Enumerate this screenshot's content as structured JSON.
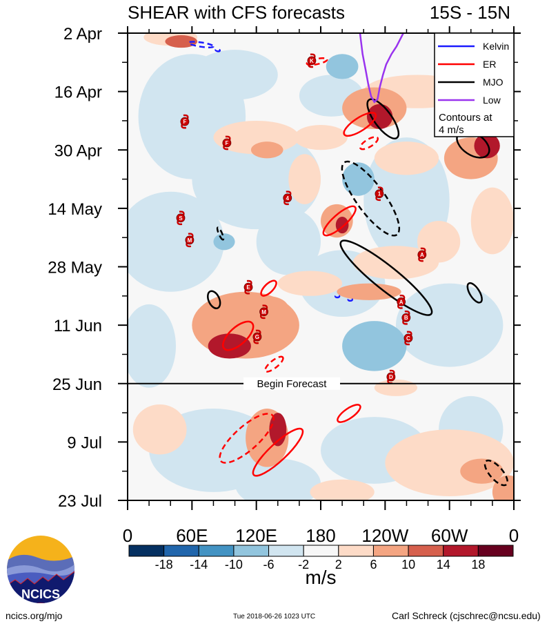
{
  "chart_data": {
    "type": "heatmap",
    "title": "SHEAR with CFS forecasts",
    "region": "15S - 15N",
    "x_axis": {
      "range_lon": [
        0,
        360
      ],
      "ticks": [
        {
          "lon": 0,
          "label": "0"
        },
        {
          "lon": 60,
          "label": "60E"
        },
        {
          "lon": 120,
          "label": "120E"
        },
        {
          "lon": 180,
          "label": "180"
        },
        {
          "lon": 240,
          "label": "120W"
        },
        {
          "lon": 300,
          "label": "60W"
        },
        {
          "lon": 360,
          "label": "0"
        }
      ]
    },
    "y_axis": {
      "range_days_from_2Apr": [
        0,
        112
      ],
      "ticks": [
        {
          "day": 0,
          "label": "2 Apr"
        },
        {
          "day": 14,
          "label": "16 Apr"
        },
        {
          "day": 28,
          "label": "30 Apr"
        },
        {
          "day": 42,
          "label": "14 May"
        },
        {
          "day": 56,
          "label": "28 May"
        },
        {
          "day": 70,
          "label": "11 Jun"
        },
        {
          "day": 84,
          "label": "25 Jun"
        },
        {
          "day": 98,
          "label": "9 Jul"
        },
        {
          "day": 112,
          "label": "23 Jul"
        }
      ]
    },
    "forecast_start": {
      "day": 84,
      "label": "Begin Forecast"
    },
    "colorbar": {
      "unit": "m/s",
      "levels": [
        "-18",
        "-14",
        "-10",
        "-6",
        "-2",
        "2",
        "6",
        "10",
        "14",
        "18"
      ],
      "colors": [
        "#053061",
        "#2166ac",
        "#4393c3",
        "#92c5de",
        "#d1e5f0",
        "#f7f7f7",
        "#fddbc7",
        "#f4a582",
        "#d6604d",
        "#b2182b",
        "#67001f"
      ]
    },
    "legend": {
      "items": [
        {
          "label": "Kelvin",
          "color": "#1a1aff"
        },
        {
          "label": "ER",
          "color": "#ff0000"
        },
        {
          "label": "MJO",
          "color": "#000000"
        },
        {
          "label": "Low",
          "color": "#9933ee"
        }
      ],
      "note_line1": "Contours at",
      "note_line2": "4 m/s",
      "placement": "top-right"
    },
    "shading_anomalies": [
      {
        "lon": 60,
        "day": 20,
        "rlon": 50,
        "rday": 15,
        "v": -4
      },
      {
        "lon": 120,
        "day": 35,
        "rlon": 60,
        "rday": 12,
        "v": -4
      },
      {
        "lon": 40,
        "day": 50,
        "rlon": 50,
        "rday": 12,
        "v": -4
      },
      {
        "lon": 150,
        "day": 50,
        "rlon": 30,
        "rday": 8,
        "v": -4
      },
      {
        "lon": 80,
        "day": 100,
        "rlon": 60,
        "rday": 10,
        "v": -4
      },
      {
        "lon": 140,
        "day": 108,
        "rlon": 40,
        "rday": 6,
        "v": -4
      },
      {
        "lon": 260,
        "day": 40,
        "rlon": 40,
        "rday": 15,
        "v": -4
      },
      {
        "lon": 300,
        "day": 70,
        "rlon": 50,
        "rday": 10,
        "v": -4
      },
      {
        "lon": 230,
        "day": 100,
        "rlon": 50,
        "rday": 8,
        "v": -4
      },
      {
        "lon": 320,
        "day": 95,
        "rlon": 30,
        "rday": 8,
        "v": -4
      },
      {
        "lon": 200,
        "day": 60,
        "rlon": 40,
        "rday": 8,
        "v": -4
      },
      {
        "lon": 20,
        "day": 75,
        "rlon": 25,
        "rday": 10,
        "v": -4
      },
      {
        "lon": 100,
        "day": 10,
        "rlon": 40,
        "rday": 6,
        "v": -4
      },
      {
        "lon": 190,
        "day": 15,
        "rlon": 30,
        "rday": 5,
        "v": -4
      },
      {
        "lon": 230,
        "day": 75,
        "rlon": 30,
        "rday": 6,
        "v": -8
      },
      {
        "lon": 215,
        "day": 35,
        "rlon": 15,
        "rday": 4,
        "v": -8
      },
      {
        "lon": 200,
        "day": 8,
        "rlon": 15,
        "rday": 3,
        "v": -8
      },
      {
        "lon": 90,
        "day": 50,
        "rlon": 10,
        "rday": 2,
        "v": -8
      },
      {
        "lon": 40,
        "day": 1,
        "rlon": 25,
        "rday": 2,
        "v": 4
      },
      {
        "lon": 50,
        "day": 2,
        "rlon": 15,
        "rday": 1.5,
        "v": 12
      },
      {
        "lon": 120,
        "day": 25,
        "rlon": 40,
        "rday": 4,
        "v": 4
      },
      {
        "lon": 130,
        "day": 28,
        "rlon": 15,
        "rday": 2,
        "v": 8
      },
      {
        "lon": 165,
        "day": 35,
        "rlon": 15,
        "rday": 6,
        "v": 4
      },
      {
        "lon": 230,
        "day": 18,
        "rlon": 30,
        "rday": 5,
        "v": 8
      },
      {
        "lon": 235,
        "day": 20,
        "rlon": 12,
        "rday": 3,
        "v": 14
      },
      {
        "lon": 270,
        "day": 14,
        "rlon": 50,
        "rday": 4,
        "v": 4
      },
      {
        "lon": 320,
        "day": 30,
        "rlon": 25,
        "rday": 5,
        "v": 8
      },
      {
        "lon": 335,
        "day": 27,
        "rlon": 12,
        "rday": 3,
        "v": 14
      },
      {
        "lon": 110,
        "day": 70,
        "rlon": 50,
        "rday": 8,
        "v": 8
      },
      {
        "lon": 95,
        "day": 75,
        "rlon": 20,
        "rday": 3,
        "v": 14
      },
      {
        "lon": 130,
        "day": 66,
        "rlon": 20,
        "rday": 3,
        "v": 8
      },
      {
        "lon": 195,
        "day": 45,
        "rlon": 15,
        "rday": 4,
        "v": 8
      },
      {
        "lon": 200,
        "day": 46,
        "rlon": 6,
        "rday": 2,
        "v": 14
      },
      {
        "lon": 250,
        "day": 55,
        "rlon": 40,
        "rday": 4,
        "v": 4
      },
      {
        "lon": 225,
        "day": 62,
        "rlon": 30,
        "rday": 2,
        "v": 8
      },
      {
        "lon": 170,
        "day": 60,
        "rlon": 30,
        "rday": 3,
        "v": 4
      },
      {
        "lon": 250,
        "day": 85,
        "rlon": 20,
        "rday": 2,
        "v": 4
      },
      {
        "lon": 130,
        "day": 97,
        "rlon": 20,
        "rday": 7,
        "v": 8
      },
      {
        "lon": 140,
        "day": 95,
        "rlon": 8,
        "rday": 4,
        "v": 14
      },
      {
        "lon": 300,
        "day": 103,
        "rlon": 60,
        "rday": 8,
        "v": 4
      },
      {
        "lon": 330,
        "day": 105,
        "rlon": 20,
        "rday": 3,
        "v": 8
      },
      {
        "lon": 355,
        "day": 110,
        "rlon": 15,
        "rday": 4,
        "v": 8
      },
      {
        "lon": 30,
        "day": 95,
        "rlon": 25,
        "rday": 6,
        "v": 4
      },
      {
        "lon": 290,
        "day": 50,
        "rlon": 20,
        "rday": 5,
        "v": 4
      },
      {
        "lon": 200,
        "day": 110,
        "rlon": 30,
        "rday": 3,
        "v": 4
      },
      {
        "lon": 340,
        "day": 45,
        "rlon": 20,
        "rday": 8,
        "v": 4
      },
      {
        "lon": 260,
        "day": 30,
        "rlon": 30,
        "rday": 4,
        "v": 4
      },
      {
        "lon": 180,
        "day": 25,
        "rlon": 25,
        "rday": 3,
        "v": 4
      }
    ],
    "contours": [
      {
        "wave": "Kelvin",
        "sign": "neg",
        "p1": [
          57,
          2.3
        ],
        "p2": [
          80,
          3.2
        ],
        "width": 4
      },
      {
        "wave": "Kelvin",
        "sign": "neg",
        "p1": [
          82,
          4.0
        ],
        "p2": [
          86,
          4.2
        ],
        "width": 2
      },
      {
        "wave": "Kelvin",
        "sign": "neg",
        "p1": [
          195,
          63.1
        ],
        "p2": [
          196,
          63.1
        ],
        "width": 2
      },
      {
        "wave": "Kelvin",
        "sign": "neg",
        "p1": [
          207,
          63.9
        ],
        "p2": [
          208,
          63.9
        ],
        "width": 2
      },
      {
        "wave": "MJO",
        "sign": "pos",
        "p1": [
          225,
          16
        ],
        "p2": [
          251,
          25.1
        ],
        "width": 16
      },
      {
        "wave": "MJO",
        "sign": "pos",
        "p1": [
          308,
          24.3
        ],
        "p2": [
          336,
          29
        ],
        "width": 20
      },
      {
        "wave": "MJO",
        "sign": "neg",
        "p1": [
          202,
          31
        ],
        "p2": [
          251,
          48.3
        ],
        "width": 26
      },
      {
        "wave": "MJO",
        "sign": "pos",
        "p1": [
          199,
          50
        ],
        "p2": [
          283,
          67.3
        ],
        "width": 22
      },
      {
        "wave": "MJO",
        "sign": "pos",
        "p1": [
          77,
          61.9
        ],
        "p2": [
          84,
          65.9
        ],
        "width": 10
      },
      {
        "wave": "MJO",
        "sign": "neg",
        "p1": [
          84,
          46.6
        ],
        "p2": [
          89,
          49.5
        ],
        "width": 3
      },
      {
        "wave": "MJO",
        "sign": "pos",
        "p1": [
          318,
          60
        ],
        "p2": [
          329,
          64.5
        ],
        "width": 9
      },
      {
        "wave": "MJO",
        "sign": "neg",
        "p1": [
          334,
          102.6
        ],
        "p2": [
          353,
          108.2
        ],
        "width": 12
      },
      {
        "wave": "ER",
        "sign": "pos",
        "p1": [
          202,
          24.3
        ],
        "p2": [
          231,
          19.4
        ],
        "width": 12
      },
      {
        "wave": "ER",
        "sign": "neg",
        "p1": [
          217,
          27.6
        ],
        "p2": [
          233,
          25.1
        ],
        "width": 7
      },
      {
        "wave": "ER",
        "sign": "neg",
        "p1": [
          167,
          7.3
        ],
        "p2": [
          186,
          6.3
        ],
        "width": 5
      },
      {
        "wave": "ER",
        "sign": "pos",
        "p1": [
          183,
          48.3
        ],
        "p2": [
          212,
          41.7
        ],
        "width": 12
      },
      {
        "wave": "ER",
        "sign": "pos",
        "p1": [
          125,
          62.8
        ],
        "p2": [
          138,
          59.5
        ],
        "width": 8
      },
      {
        "wave": "ER",
        "sign": "pos",
        "p1": [
          90,
          75.6
        ],
        "p2": [
          116,
          69.5
        ],
        "width": 16
      },
      {
        "wave": "ER",
        "sign": "neg",
        "p1": [
          128.5,
          81
        ],
        "p2": [
          144.6,
          77.7
        ],
        "width": 7
      },
      {
        "wave": "ER",
        "sign": "pos",
        "p1": [
          196,
          93
        ],
        "p2": [
          216.6,
          89.3
        ],
        "width": 9
      },
      {
        "wave": "ER",
        "sign": "neg",
        "p1": [
          87,
          102.6
        ],
        "p2": [
          135,
          91.6
        ],
        "width": 22
      },
      {
        "wave": "ER",
        "sign": "pos",
        "p1": [
          117.6,
          105.9
        ],
        "p2": [
          162.6,
          95
        ],
        "width": 16
      }
    ],
    "low_line": [
      [
        216.6,
        0
      ],
      [
        219,
        5
      ],
      [
        221.7,
        8.6
      ],
      [
        224.5,
        12.5
      ],
      [
        227,
        15.2
      ],
      [
        230,
        16.5
      ],
      [
        233,
        15.8
      ],
      [
        235,
        13
      ],
      [
        238,
        10
      ],
      [
        241,
        7.5
      ],
      [
        246,
        5
      ],
      [
        250.6,
        3.2
      ],
      [
        254,
        1.5
      ],
      [
        257,
        0
      ]
    ],
    "storms": [
      {
        "label": "K",
        "lon": 171.6,
        "day": 6.6
      },
      {
        "label": "F",
        "lon": 53.3,
        "day": 21.2
      },
      {
        "label": "F",
        "lon": 92.5,
        "day": 26.3
      },
      {
        "label": "4",
        "lon": 149,
        "day": 39.5
      },
      {
        "label": "S",
        "lon": 49.5,
        "day": 44.3
      },
      {
        "label": "M",
        "lon": 57.8,
        "day": 49.6
      },
      {
        "label": "E",
        "lon": 112.5,
        "day": 60.9
      },
      {
        "label": "M",
        "lon": 127,
        "day": 66.8
      },
      {
        "label": "G",
        "lon": 120.8,
        "day": 72.8
      },
      {
        "label": "1",
        "lon": 234.6,
        "day": 38.5
      },
      {
        "label": "A",
        "lon": 274.4,
        "day": 53.1
      },
      {
        "label": "A",
        "lon": 255,
        "day": 64.4
      },
      {
        "label": "B",
        "lon": 259.6,
        "day": 68.2
      },
      {
        "label": "C",
        "lon": 261.6,
        "day": 73.1
      },
      {
        "label": "D",
        "lon": 245.5,
        "day": 82.4
      }
    ]
  },
  "footer": {
    "site": "ncics.org/mjo",
    "timestamp": "Tue 2018-06-26 1023 UTC",
    "author": "Carl Schreck (cjschrec@ncsu.edu)",
    "logo_text": "NCICS"
  }
}
